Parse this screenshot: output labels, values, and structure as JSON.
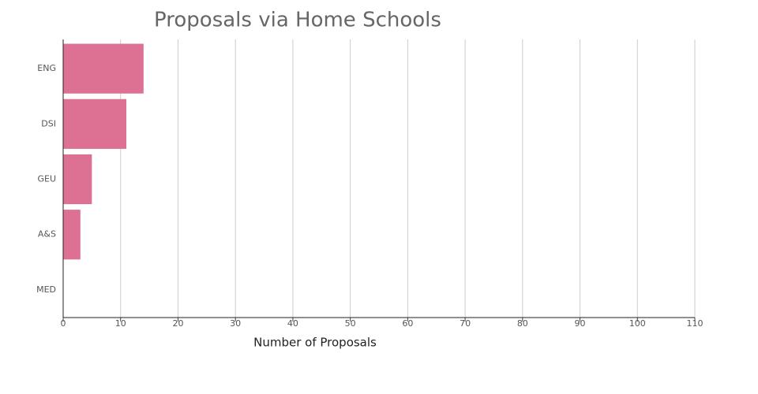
{
  "chart_data": {
    "type": "bar",
    "orientation": "horizontal",
    "title": "Proposals via Home Schools",
    "x_label": "Number of Proposals",
    "categories": [
      "ENG",
      "DSI",
      "GEU",
      "A&S",
      "MED"
    ],
    "values": [
      14,
      11,
      5,
      3,
      0
    ],
    "color": "#dd7193",
    "xlim": [
      0,
      110
    ],
    "xticks": [
      0,
      10,
      20,
      30,
      40,
      50,
      60,
      70,
      80,
      90,
      100,
      110
    ],
    "grid": true
  }
}
